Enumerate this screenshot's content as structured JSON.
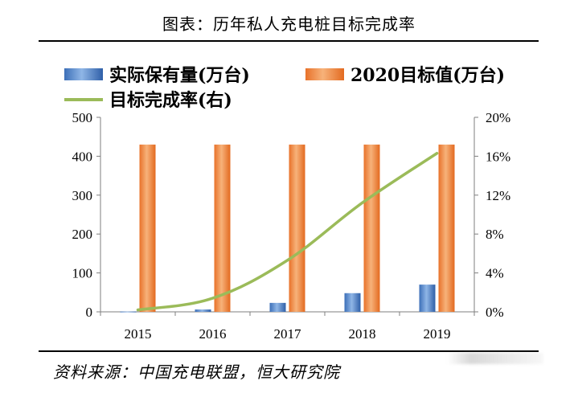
{
  "figure": {
    "title": "图表：历年私人充电桩目标完成率",
    "source": "资料来源：中国充电联盟，恒大研究院"
  },
  "chart_data": {
    "type": "bar",
    "categories": [
      "2015",
      "2016",
      "2017",
      "2018",
      "2019"
    ],
    "series": [
      {
        "name": "实际保有量(万台)",
        "kind": "bar",
        "axis": "left",
        "color": "#4a7fc8",
        "values": [
          0.8,
          6,
          23,
          48,
          70
        ]
      },
      {
        "name": "2020目标值(万台)",
        "kind": "bar",
        "axis": "left",
        "color": "#f08a3c",
        "values": [
          430,
          430,
          430,
          430,
          430
        ]
      },
      {
        "name": "目标完成率(右)",
        "kind": "line",
        "axis": "right",
        "color": "#9bbb59",
        "values": [
          0.2,
          1.4,
          5.3,
          11.2,
          16.3
        ]
      }
    ],
    "left_axis": {
      "ylim": [
        0,
        500
      ],
      "ticks": [
        "0",
        "100",
        "200",
        "300",
        "400",
        "500"
      ]
    },
    "right_axis": {
      "ylim": [
        0,
        20
      ],
      "ticks": [
        "0%",
        "4%",
        "8%",
        "12%",
        "16%",
        "20%"
      ]
    },
    "legend_position": "top-left"
  }
}
